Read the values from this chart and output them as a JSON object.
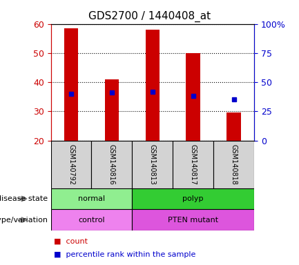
{
  "title": "GDS2700 / 1440408_at",
  "samples": [
    "GSM140792",
    "GSM140816",
    "GSM140813",
    "GSM140817",
    "GSM140818"
  ],
  "counts": [
    58.5,
    41.0,
    58.0,
    50.0,
    29.5
  ],
  "percentile_ranks": [
    40.0,
    41.0,
    41.5,
    38.0,
    35.0
  ],
  "ymin": 20,
  "ymax": 60,
  "yticks_left": [
    20,
    30,
    40,
    50,
    60
  ],
  "yticks_right": [
    0,
    25,
    50,
    75,
    100
  ],
  "bar_color": "#cc0000",
  "dot_color": "#0000cc",
  "bar_width": 0.35,
  "disease_state": [
    {
      "label": "normal",
      "cols": [
        0,
        1
      ],
      "color": "#90ee90"
    },
    {
      "label": "polyp",
      "cols": [
        2,
        3,
        4
      ],
      "color": "#33cc33"
    }
  ],
  "genotype": [
    {
      "label": "control",
      "cols": [
        0,
        1
      ],
      "color": "#ee82ee"
    },
    {
      "label": "PTEN mutant",
      "cols": [
        2,
        3,
        4
      ],
      "color": "#dd55dd"
    }
  ],
  "legend_count_color": "#cc0000",
  "legend_pct_color": "#0000cc",
  "bg_color": "#ffffff",
  "left_axis_color": "#cc0000",
  "right_axis_color": "#0000cc"
}
